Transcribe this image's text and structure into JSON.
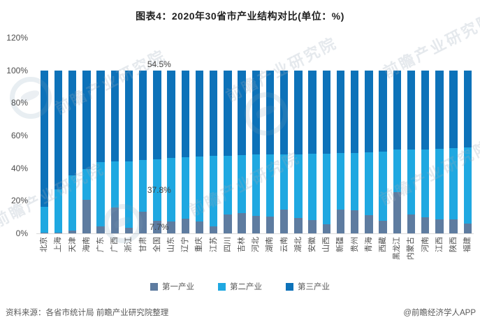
{
  "title": "图表4：2020年30省市产业结构对比(单位：%)",
  "source_left": "资料来源：各省市统计局 前瞻产业研究院整理",
  "source_right": "@前瞻经济学人APP",
  "watermark_text": "前瞻产业研究院",
  "colors": {
    "primary_industry": "#5e7ca0",
    "secondary_industry": "#1fa8e1",
    "tertiary_industry": "#0d72b9",
    "axis_text": "#4d4d4d",
    "value_label_text": "#404040",
    "axis_line": "#d9d9d9"
  },
  "chart_data": {
    "type": "bar",
    "stacked": true,
    "unit": "%",
    "title": "图表4：2020年30省市产业结构对比(单位：%)",
    "xlabel": "",
    "ylabel": "",
    "ylim": [
      0,
      120
    ],
    "y_ticks": [
      "0%",
      "20%",
      "40%",
      "60%",
      "80%",
      "100%",
      "120%"
    ],
    "grid": false,
    "legend_position": "bottom",
    "categories": [
      "北京",
      "上海",
      "天津",
      "海南",
      "广东",
      "广西",
      "浙江",
      "甘肃",
      "全国",
      "山东",
      "辽宁",
      "重庆",
      "江苏",
      "四川",
      "吉林",
      "河北",
      "湖南",
      "云南",
      "湖北",
      "安徽",
      "山西",
      "新疆",
      "贵州",
      "青海",
      "西藏",
      "黑龙江",
      "内蒙古",
      "河南",
      "江西",
      "陕西",
      "福建"
    ],
    "series": [
      {
        "name": "第一产业",
        "color": "#5e7ca0",
        "values": [
          0.4,
          0.3,
          1.5,
          20.5,
          4.3,
          16.0,
          3.3,
          13.3,
          7.7,
          7.3,
          9.0,
          7.2,
          4.4,
          11.4,
          12.6,
          10.7,
          10.2,
          14.7,
          9.5,
          8.2,
          5.4,
          14.4,
          14.3,
          11.0,
          7.9,
          25.1,
          11.7,
          9.7,
          8.7,
          8.7,
          6.2
        ]
      },
      {
        "name": "第二产业",
        "color": "#1fa8e1",
        "values": [
          15.8,
          26.6,
          34.1,
          19.1,
          39.2,
          28.2,
          40.9,
          31.8,
          37.8,
          39.1,
          37.5,
          40.0,
          43.1,
          36.2,
          35.2,
          37.6,
          38.2,
          33.8,
          39.1,
          40.5,
          43.5,
          34.8,
          35.1,
          38.5,
          42.0,
          26.2,
          39.6,
          41.6,
          43.2,
          43.4,
          46.3
        ]
      },
      {
        "name": "第三产业",
        "color": "#0d72b9",
        "values": [
          83.8,
          73.1,
          64.4,
          60.4,
          56.5,
          55.8,
          55.8,
          54.9,
          54.5,
          53.6,
          53.5,
          52.8,
          52.5,
          52.4,
          52.2,
          51.7,
          51.6,
          51.5,
          51.4,
          51.3,
          51.1,
          50.8,
          50.6,
          50.5,
          50.1,
          48.7,
          48.7,
          48.7,
          48.1,
          47.9,
          47.5
        ]
      }
    ],
    "annotations": [
      {
        "category": "全国",
        "series": "第三产业",
        "text": "54.5%"
      },
      {
        "category": "全国",
        "series": "第二产业",
        "text": "37.8%"
      },
      {
        "category": "全国",
        "series": "第一产业",
        "text": "7.7%"
      }
    ]
  }
}
